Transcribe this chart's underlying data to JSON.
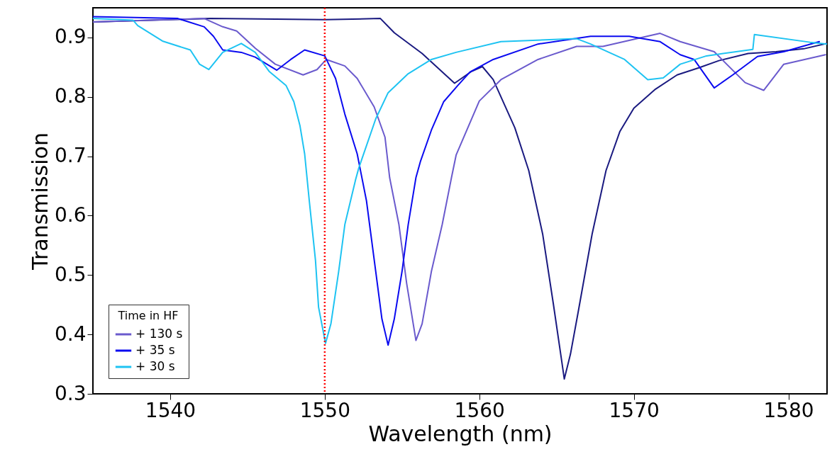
{
  "chart_data": {
    "type": "line",
    "xlabel": "Wavelength (nm)",
    "ylabel": "Transmission",
    "legend_title": "Time in HF",
    "legend": "bottom left",
    "grid": false,
    "line_style": "solid",
    "xlim": [
      1535,
      1582.5
    ],
    "xticks": [
      1540,
      1550,
      1560,
      1570,
      1580
    ],
    "ylim": [
      0.3,
      0.95
    ],
    "yticks": [
      0.3,
      0.4,
      0.5,
      0.6,
      0.7,
      0.8,
      0.9
    ],
    "ref_lines": [
      {
        "axis": "x",
        "value": 1550,
        "color": "#ff0000",
        "line_style": "dotted"
      }
    ],
    "series": [
      {
        "color": "#1a1a80",
        "x": [
          1535,
          1542.6,
          1550,
          1553.6,
          1554.5,
          1556.3,
          1558.4,
          1559.5,
          1560.2,
          1560.9,
          1562.3,
          1563.2,
          1564.1,
          1564.8,
          1565.3,
          1565.5,
          1565.9,
          1566.4,
          1567.3,
          1568.2,
          1569.1,
          1570,
          1571.4,
          1572.8,
          1574.2,
          1575.5,
          1577.4,
          1579.2,
          1581,
          1582.5
        ],
        "values": [
          0.926,
          0.932,
          0.93,
          0.932,
          0.908,
          0.873,
          0.823,
          0.843,
          0.851,
          0.829,
          0.748,
          0.676,
          0.569,
          0.45,
          0.361,
          0.325,
          0.367,
          0.438,
          0.569,
          0.676,
          0.742,
          0.781,
          0.813,
          0.837,
          0.849,
          0.861,
          0.873,
          0.876,
          0.881,
          0.89
        ]
      },
      {
        "name": "+ 130 s",
        "color": "#6a5acd",
        "x": [
          1535,
          1542.2,
          1543.4,
          1544.3,
          1545.5,
          1546.8,
          1548.6,
          1549.5,
          1550.1,
          1551.3,
          1552.1,
          1553.2,
          1553.9,
          1554.2,
          1554.8,
          1555.3,
          1555.9,
          1556.3,
          1556.9,
          1557.6,
          1558.2,
          1558.5,
          1560,
          1561.4,
          1563.8,
          1566.3,
          1568,
          1571.7,
          1573,
          1575.2,
          1577.2,
          1578.4,
          1579.7,
          1582.4
        ],
        "values": [
          0.926,
          0.932,
          0.918,
          0.911,
          0.882,
          0.855,
          0.837,
          0.846,
          0.863,
          0.852,
          0.831,
          0.783,
          0.732,
          0.664,
          0.585,
          0.486,
          0.39,
          0.418,
          0.506,
          0.585,
          0.664,
          0.702,
          0.793,
          0.829,
          0.863,
          0.885,
          0.885,
          0.907,
          0.893,
          0.876,
          0.824,
          0.811,
          0.855,
          0.871
        ]
      },
      {
        "name": "+ 35 s",
        "color": "#0a0af0",
        "x": [
          1535,
          1540.5,
          1542.2,
          1542.8,
          1543.4,
          1544.6,
          1545.5,
          1546.9,
          1547.8,
          1548.7,
          1550,
          1550.7,
          1551.3,
          1552.1,
          1552.7,
          1553.3,
          1553.7,
          1554.1,
          1554.5,
          1555,
          1555.4,
          1555.9,
          1556.2,
          1556.9,
          1557.7,
          1558.6,
          1559.4,
          1560.9,
          1563.8,
          1567.2,
          1569.7,
          1571.7,
          1573,
          1573.9,
          1575.2,
          1576.4,
          1578,
          1579.7,
          1582
        ],
        "values": [
          0.935,
          0.932,
          0.918,
          0.902,
          0.879,
          0.875,
          0.867,
          0.845,
          0.863,
          0.879,
          0.869,
          0.831,
          0.771,
          0.704,
          0.625,
          0.506,
          0.426,
          0.382,
          0.426,
          0.506,
          0.585,
          0.664,
          0.692,
          0.744,
          0.792,
          0.819,
          0.842,
          0.863,
          0.889,
          0.902,
          0.902,
          0.893,
          0.871,
          0.863,
          0.815,
          0.837,
          0.868,
          0.876,
          0.893
        ]
      },
      {
        "name": "+ 30 s",
        "color": "#1ec3f2",
        "x": [
          1535,
          1537.6,
          1537.9,
          1539.5,
          1541.3,
          1541.9,
          1542.5,
          1543.4,
          1544.6,
          1545.5,
          1546.4,
          1547.5,
          1548,
          1548.4,
          1548.7,
          1549,
          1549.4,
          1549.6,
          1550.05,
          1550.4,
          1550.9,
          1551.3,
          1552,
          1552.2,
          1553.3,
          1554.1,
          1555.4,
          1556.9,
          1558.5,
          1561.4,
          1566.3,
          1567.2,
          1569.4,
          1570.9,
          1571.9,
          1573,
          1574.7,
          1577.7,
          1577.8,
          1581.4,
          1582.5
        ],
        "values": [
          0.932,
          0.929,
          0.92,
          0.894,
          0.879,
          0.855,
          0.846,
          0.875,
          0.89,
          0.875,
          0.843,
          0.819,
          0.792,
          0.751,
          0.704,
          0.625,
          0.525,
          0.446,
          0.385,
          0.418,
          0.506,
          0.585,
          0.661,
          0.68,
          0.763,
          0.807,
          0.839,
          0.863,
          0.875,
          0.893,
          0.898,
          0.889,
          0.863,
          0.829,
          0.832,
          0.855,
          0.869,
          0.88,
          0.905,
          0.892,
          0.889
        ]
      }
    ]
  }
}
